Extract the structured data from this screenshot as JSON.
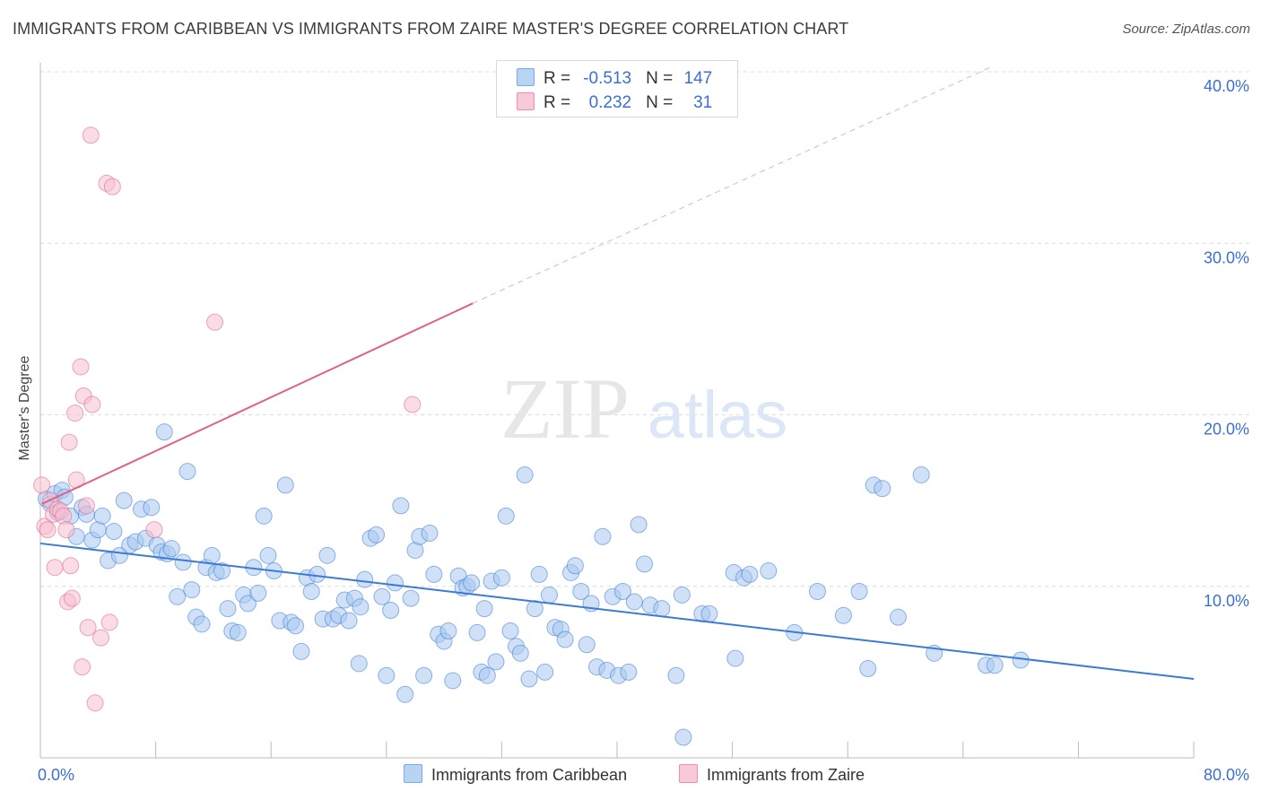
{
  "header": {
    "title": "IMMIGRANTS FROM CARIBBEAN VS IMMIGRANTS FROM ZAIRE MASTER'S DEGREE CORRELATION CHART",
    "source": "Source: ZipAtlas.com"
  },
  "watermark": {
    "zip": "ZIP",
    "atlas": "atlas"
  },
  "legend": {
    "r_label": "R =",
    "n_label": "N =",
    "rows": [
      {
        "r": "-0.513",
        "n": "147",
        "color": "#7aaae8",
        "fill": "#b9d3f3"
      },
      {
        "r": "0.232",
        "n": "31",
        "color": "#ee8fab",
        "fill": "#f8c9d7"
      }
    ]
  },
  "chart_data": {
    "type": "scatter",
    "ylabel": "Master's Degree",
    "x_tick_labels": [
      "0.0%",
      "80.0%"
    ],
    "y_tick_labels": [
      "10.0%",
      "20.0%",
      "30.0%",
      "40.0%"
    ],
    "xlim": [
      0,
      80
    ],
    "ylim": [
      0,
      41
    ],
    "y_ticks": [
      10,
      20,
      30,
      40
    ],
    "grid": true,
    "legend_position": "top-center",
    "series": [
      {
        "name": "Immigrants from Caribbean",
        "color": "#3b7bd4",
        "fill": "#a9c8f0",
        "trend": {
          "x0": 0,
          "y0": 12.5,
          "x1": 80,
          "y1": 4.6,
          "dashed_from": null
        },
        "points": [
          [
            0.4,
            15.1
          ],
          [
            0.7,
            14.8
          ],
          [
            1.0,
            15.4
          ],
          [
            1.2,
            14.3
          ],
          [
            1.5,
            15.6
          ],
          [
            1.7,
            15.2
          ],
          [
            2.1,
            14.1
          ],
          [
            2.5,
            12.9
          ],
          [
            2.9,
            14.6
          ],
          [
            3.2,
            14.2
          ],
          [
            3.6,
            12.7
          ],
          [
            4.0,
            13.3
          ],
          [
            4.3,
            14.1
          ],
          [
            4.7,
            11.5
          ],
          [
            5.1,
            13.2
          ],
          [
            5.5,
            11.8
          ],
          [
            5.8,
            15.0
          ],
          [
            6.2,
            12.4
          ],
          [
            6.6,
            12.6
          ],
          [
            7.0,
            14.5
          ],
          [
            7.3,
            12.8
          ],
          [
            7.7,
            14.6
          ],
          [
            8.1,
            12.4
          ],
          [
            8.4,
            12.0
          ],
          [
            8.8,
            11.9
          ],
          [
            8.6,
            19.0
          ],
          [
            9.1,
            12.2
          ],
          [
            9.5,
            9.4
          ],
          [
            9.9,
            11.4
          ],
          [
            10.2,
            16.7
          ],
          [
            10.5,
            9.8
          ],
          [
            10.8,
            8.2
          ],
          [
            11.2,
            7.8
          ],
          [
            11.5,
            11.1
          ],
          [
            11.9,
            11.8
          ],
          [
            12.2,
            10.8
          ],
          [
            12.6,
            10.9
          ],
          [
            13.0,
            8.7
          ],
          [
            13.3,
            7.4
          ],
          [
            13.7,
            7.3
          ],
          [
            14.1,
            9.5
          ],
          [
            14.4,
            9.0
          ],
          [
            14.8,
            11.1
          ],
          [
            15.1,
            9.6
          ],
          [
            15.5,
            14.1
          ],
          [
            15.8,
            11.8
          ],
          [
            16.2,
            10.9
          ],
          [
            16.6,
            8.0
          ],
          [
            17.0,
            15.9
          ],
          [
            17.4,
            7.9
          ],
          [
            17.7,
            7.7
          ],
          [
            18.1,
            6.2
          ],
          [
            18.5,
            10.5
          ],
          [
            18.8,
            9.7
          ],
          [
            19.2,
            10.7
          ],
          [
            19.6,
            8.1
          ],
          [
            19.9,
            11.8
          ],
          [
            20.3,
            8.1
          ],
          [
            20.7,
            8.3
          ],
          [
            21.1,
            9.2
          ],
          [
            21.4,
            8.0
          ],
          [
            21.8,
            9.3
          ],
          [
            22.2,
            8.8
          ],
          [
            22.5,
            10.4
          ],
          [
            22.9,
            12.8
          ],
          [
            23.3,
            13.0
          ],
          [
            23.7,
            9.4
          ],
          [
            24.0,
            4.8
          ],
          [
            24.3,
            8.6
          ],
          [
            24.6,
            10.2
          ],
          [
            25.0,
            14.7
          ],
          [
            25.3,
            3.7
          ],
          [
            25.7,
            9.3
          ],
          [
            26.0,
            12.1
          ],
          [
            26.3,
            12.9
          ],
          [
            26.6,
            4.8
          ],
          [
            27.0,
            13.1
          ],
          [
            27.3,
            10.7
          ],
          [
            27.6,
            7.2
          ],
          [
            28.0,
            6.8
          ],
          [
            28.3,
            7.4
          ],
          [
            28.6,
            4.5
          ],
          [
            29.0,
            10.6
          ],
          [
            29.3,
            9.9
          ],
          [
            29.6,
            10.0
          ],
          [
            29.9,
            10.2
          ],
          [
            30.3,
            7.3
          ],
          [
            30.6,
            5.0
          ],
          [
            31.0,
            4.8
          ],
          [
            31.3,
            10.3
          ],
          [
            31.6,
            5.6
          ],
          [
            32.0,
            10.5
          ],
          [
            32.3,
            14.1
          ],
          [
            32.6,
            7.4
          ],
          [
            33.0,
            6.5
          ],
          [
            33.3,
            6.1
          ],
          [
            33.6,
            16.5
          ],
          [
            33.9,
            4.6
          ],
          [
            34.3,
            8.7
          ],
          [
            34.6,
            10.7
          ],
          [
            35.0,
            5.0
          ],
          [
            35.3,
            9.5
          ],
          [
            35.7,
            7.6
          ],
          [
            36.1,
            7.5
          ],
          [
            36.4,
            6.9
          ],
          [
            36.8,
            10.8
          ],
          [
            37.1,
            11.2
          ],
          [
            37.5,
            9.7
          ],
          [
            37.9,
            6.6
          ],
          [
            38.2,
            9.0
          ],
          [
            38.6,
            5.3
          ],
          [
            39.0,
            12.9
          ],
          [
            39.3,
            5.1
          ],
          [
            39.7,
            9.4
          ],
          [
            40.1,
            4.8
          ],
          [
            40.4,
            9.7
          ],
          [
            40.8,
            5.0
          ],
          [
            41.2,
            9.1
          ],
          [
            41.9,
            11.3
          ],
          [
            42.3,
            8.9
          ],
          [
            43.1,
            8.7
          ],
          [
            44.1,
            4.8
          ],
          [
            45.9,
            8.4
          ],
          [
            46.4,
            8.4
          ],
          [
            44.6,
            1.2
          ],
          [
            48.2,
            5.8
          ],
          [
            48.1,
            10.8
          ],
          [
            48.8,
            10.5
          ],
          [
            49.2,
            10.7
          ],
          [
            50.5,
            10.9
          ],
          [
            52.3,
            7.3
          ],
          [
            53.9,
            9.7
          ],
          [
            55.7,
            8.3
          ],
          [
            56.8,
            9.7
          ],
          [
            57.4,
            5.2
          ],
          [
            57.8,
            15.9
          ],
          [
            59.5,
            8.2
          ],
          [
            61.1,
            16.5
          ],
          [
            62.0,
            6.1
          ],
          [
            65.6,
            5.4
          ],
          [
            66.2,
            5.4
          ],
          [
            68.0,
            5.7
          ],
          [
            41.5,
            13.6
          ],
          [
            22.1,
            5.5
          ],
          [
            30.8,
            8.7
          ],
          [
            44.5,
            9.5
          ],
          [
            58.4,
            15.7
          ]
        ]
      },
      {
        "name": "Immigrants from Zaire",
        "color": "#e0608a",
        "fill": "#f5bfd0",
        "trend": {
          "x0": 0.1,
          "y0": 14.8,
          "x1": 30.0,
          "y1": 26.5,
          "dashed_to_x": 66.0,
          "dashed_to_y": 40.3
        },
        "points": [
          [
            0.1,
            15.9
          ],
          [
            0.3,
            13.5
          ],
          [
            0.5,
            13.3
          ],
          [
            0.7,
            15.0
          ],
          [
            0.9,
            14.2
          ],
          [
            1.0,
            11.1
          ],
          [
            1.2,
            14.5
          ],
          [
            1.4,
            14.4
          ],
          [
            1.6,
            14.1
          ],
          [
            1.8,
            13.3
          ],
          [
            1.9,
            9.1
          ],
          [
            2.0,
            18.4
          ],
          [
            2.1,
            11.2
          ],
          [
            2.2,
            9.3
          ],
          [
            2.4,
            20.1
          ],
          [
            2.5,
            16.2
          ],
          [
            2.8,
            22.8
          ],
          [
            2.9,
            5.3
          ],
          [
            3.0,
            21.1
          ],
          [
            3.2,
            14.7
          ],
          [
            3.3,
            7.6
          ],
          [
            3.5,
            36.3
          ],
          [
            3.6,
            20.6
          ],
          [
            3.8,
            3.2
          ],
          [
            4.2,
            7.0
          ],
          [
            4.6,
            33.5
          ],
          [
            4.8,
            7.9
          ],
          [
            5.0,
            33.3
          ],
          [
            7.9,
            13.3
          ],
          [
            12.1,
            25.4
          ],
          [
            25.8,
            20.6
          ]
        ]
      }
    ]
  }
}
